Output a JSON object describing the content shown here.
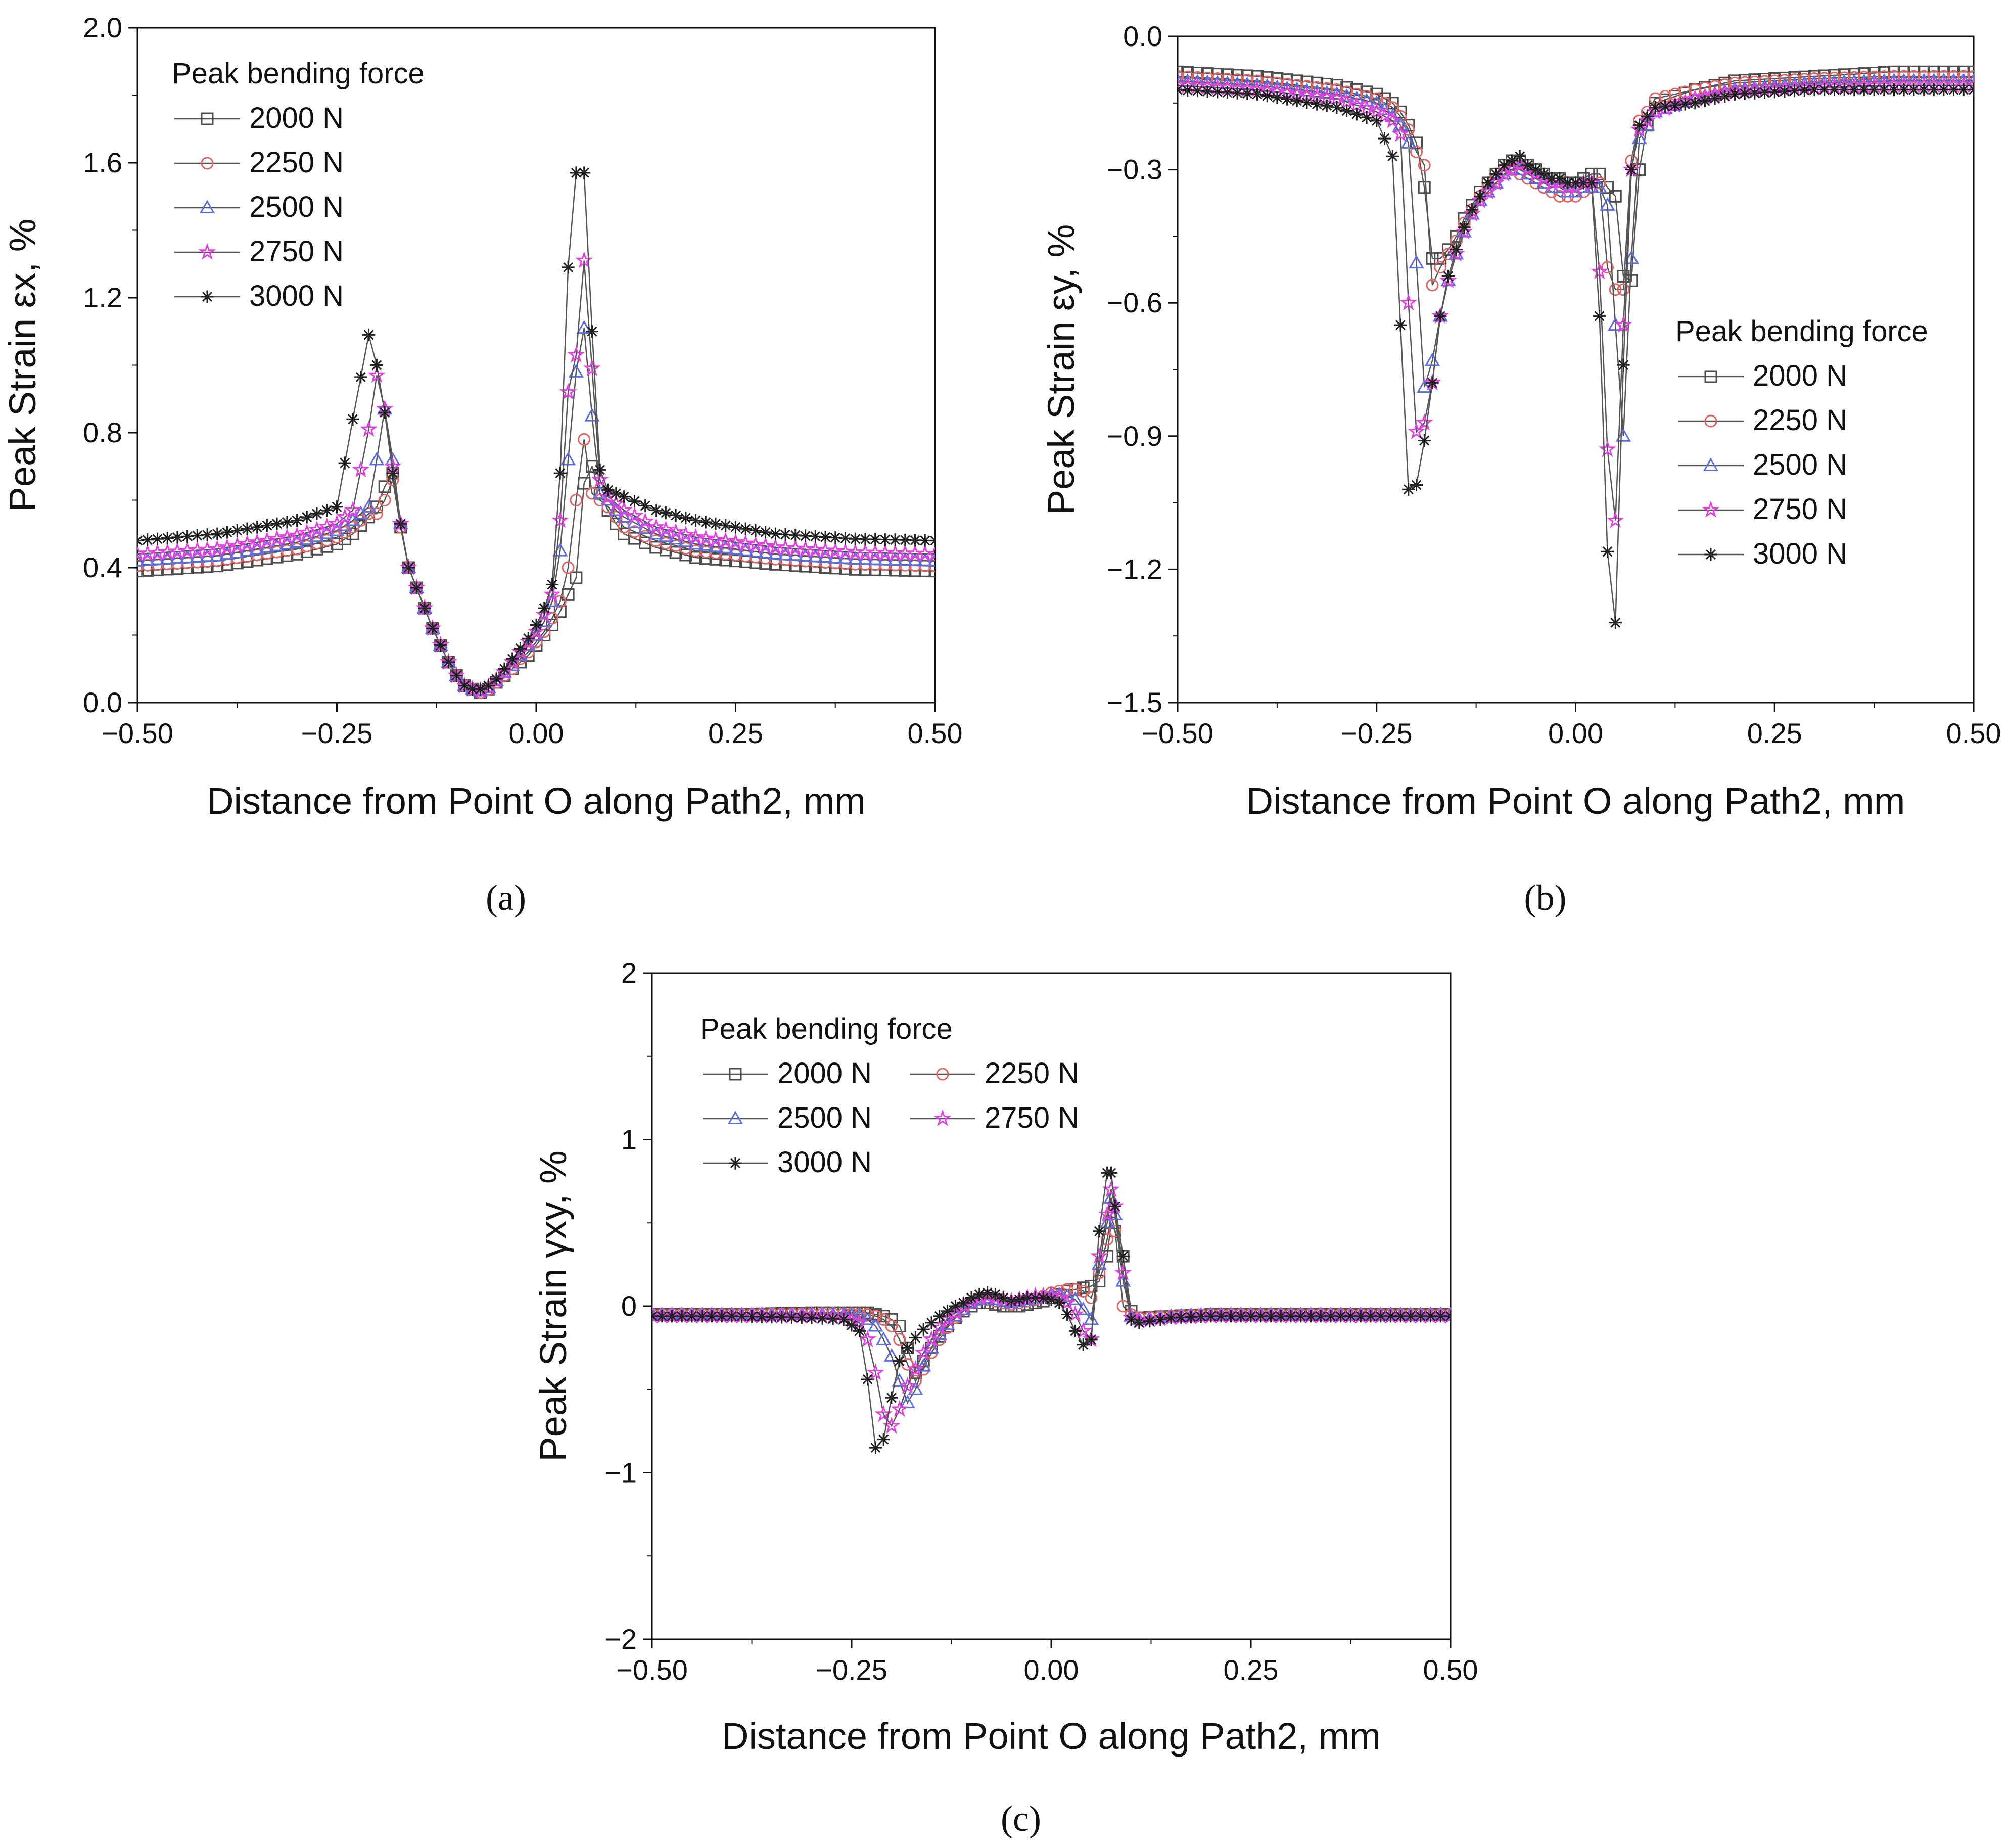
{
  "chart_data": [
    {
      "type": "line",
      "panel_label": "(a)",
      "xlabel": "Distance from Point O along Path2, mm",
      "ylabel": "Peak Strain εx, %",
      "xlim": [
        -0.5,
        0.5
      ],
      "ylim": [
        0.0,
        2.0
      ],
      "x_ticks": [
        "−0.50",
        "−0.25",
        "0.00",
        "0.25",
        "0.50"
      ],
      "y_ticks": [
        "0.0",
        "0.4",
        "0.8",
        "1.2",
        "1.6",
        "2.0"
      ],
      "legend_title": "Peak bending force",
      "legend_layout": "single-column",
      "legend_position": "top-left",
      "x": [
        -0.5,
        -0.4,
        -0.3,
        -0.25,
        -0.23,
        -0.21,
        -0.2,
        -0.19,
        -0.18,
        -0.17,
        -0.16,
        -0.15,
        -0.14,
        -0.13,
        -0.12,
        -0.11,
        -0.1,
        -0.09,
        -0.08,
        -0.07,
        -0.06,
        -0.05,
        -0.04,
        -0.03,
        -0.02,
        -0.01,
        0.0,
        0.01,
        0.02,
        0.03,
        0.04,
        0.05,
        0.06,
        0.07,
        0.08,
        0.09,
        0.1,
        0.11,
        0.15,
        0.2,
        0.3,
        0.4,
        0.5
      ],
      "series": [
        {
          "name": "2000 N",
          "color": "#4d4d4d",
          "marker": "square",
          "values": [
            0.39,
            0.405,
            0.44,
            0.47,
            0.5,
            0.55,
            0.58,
            0.64,
            0.68,
            0.52,
            0.4,
            0.34,
            0.28,
            0.22,
            0.17,
            0.12,
            0.08,
            0.05,
            0.04,
            0.03,
            0.04,
            0.06,
            0.08,
            0.1,
            0.12,
            0.14,
            0.17,
            0.2,
            0.23,
            0.27,
            0.32,
            0.37,
            0.65,
            0.7,
            0.62,
            0.57,
            0.53,
            0.5,
            0.46,
            0.43,
            0.41,
            0.395,
            0.39
          ]
        },
        {
          "name": "2250 N",
          "color": "#e06666",
          "marker": "circle",
          "values": [
            0.405,
            0.42,
            0.455,
            0.49,
            0.52,
            0.56,
            0.56,
            0.6,
            0.66,
            0.52,
            0.4,
            0.34,
            0.28,
            0.22,
            0.17,
            0.12,
            0.08,
            0.05,
            0.04,
            0.03,
            0.04,
            0.06,
            0.08,
            0.1,
            0.13,
            0.15,
            0.18,
            0.21,
            0.25,
            0.3,
            0.4,
            0.6,
            0.78,
            0.62,
            0.6,
            0.58,
            0.55,
            0.52,
            0.48,
            0.45,
            0.425,
            0.41,
            0.405
          ]
        },
        {
          "name": "2500 N",
          "color": "#5b6ee0",
          "marker": "triangle",
          "values": [
            0.42,
            0.435,
            0.475,
            0.51,
            0.54,
            0.58,
            0.72,
            0.87,
            0.72,
            0.53,
            0.4,
            0.34,
            0.28,
            0.22,
            0.17,
            0.12,
            0.08,
            0.05,
            0.04,
            0.035,
            0.045,
            0.065,
            0.09,
            0.11,
            0.14,
            0.17,
            0.2,
            0.24,
            0.3,
            0.45,
            0.72,
            0.98,
            1.11,
            0.85,
            0.62,
            0.6,
            0.57,
            0.55,
            0.5,
            0.47,
            0.44,
            0.425,
            0.42
          ]
        },
        {
          "name": "2750 N",
          "color": "#e040e0",
          "marker": "star",
          "values": [
            0.44,
            0.455,
            0.495,
            0.53,
            0.57,
            0.81,
            0.97,
            0.87,
            0.7,
            0.53,
            0.4,
            0.34,
            0.28,
            0.22,
            0.17,
            0.12,
            0.08,
            0.05,
            0.04,
            0.035,
            0.045,
            0.065,
            0.09,
            0.12,
            0.15,
            0.18,
            0.21,
            0.26,
            0.32,
            0.54,
            0.92,
            1.03,
            1.31,
            0.99,
            0.66,
            0.61,
            0.59,
            0.57,
            0.52,
            0.49,
            0.46,
            0.445,
            0.44
          ]
        },
        {
          "name": "3000 N",
          "color": "#222222",
          "marker": "asterisk",
          "values": [
            0.48,
            0.5,
            0.54,
            0.58,
            0.84,
            1.09,
            1.0,
            0.86,
            0.68,
            0.53,
            0.4,
            0.34,
            0.28,
            0.22,
            0.17,
            0.12,
            0.08,
            0.05,
            0.04,
            0.04,
            0.05,
            0.07,
            0.1,
            0.13,
            0.16,
            0.19,
            0.23,
            0.28,
            0.35,
            0.68,
            1.29,
            1.57,
            1.57,
            1.1,
            0.69,
            0.63,
            0.62,
            0.61,
            0.57,
            0.54,
            0.5,
            0.485,
            0.48
          ]
        }
      ]
    },
    {
      "type": "line",
      "panel_label": "(b)",
      "xlabel": "Distance from Point O along Path2, mm",
      "ylabel": "Peak Strain εy, %",
      "xlim": [
        -0.5,
        0.5
      ],
      "ylim": [
        -1.5,
        0.0
      ],
      "x_ticks": [
        "−0.50",
        "−0.25",
        "0.00",
        "0.25",
        "0.50"
      ],
      "y_ticks": [
        "−1.5",
        "−1.2",
        "−0.9",
        "−0.6",
        "−0.3",
        "0.0"
      ],
      "legend_title": "Peak bending force",
      "legend_layout": "single-column",
      "legend_position": "right",
      "x": [
        -0.5,
        -0.4,
        -0.3,
        -0.25,
        -0.23,
        -0.22,
        -0.21,
        -0.2,
        -0.19,
        -0.18,
        -0.17,
        -0.16,
        -0.15,
        -0.14,
        -0.13,
        -0.12,
        -0.11,
        -0.1,
        -0.09,
        -0.08,
        -0.07,
        -0.06,
        -0.05,
        -0.04,
        -0.03,
        -0.02,
        -0.01,
        0.0,
        0.01,
        0.02,
        0.03,
        0.04,
        0.05,
        0.06,
        0.07,
        0.08,
        0.09,
        0.1,
        0.15,
        0.2,
        0.3,
        0.4,
        0.5
      ],
      "series": [
        {
          "name": "2000 N",
          "color": "#4d4d4d",
          "marker": "square",
          "values": [
            -0.08,
            -0.09,
            -0.11,
            -0.13,
            -0.15,
            -0.17,
            -0.2,
            -0.24,
            -0.34,
            -0.5,
            -0.5,
            -0.48,
            -0.45,
            -0.41,
            -0.38,
            -0.35,
            -0.33,
            -0.31,
            -0.29,
            -0.28,
            -0.28,
            -0.29,
            -0.3,
            -0.31,
            -0.32,
            -0.32,
            -0.33,
            -0.33,
            -0.32,
            -0.31,
            -0.31,
            -0.34,
            -0.36,
            -0.54,
            -0.55,
            -0.3,
            -0.2,
            -0.15,
            -0.12,
            -0.1,
            -0.09,
            -0.08,
            -0.08
          ]
        },
        {
          "name": "2250 N",
          "color": "#e06666",
          "marker": "circle",
          "values": [
            -0.09,
            -0.1,
            -0.12,
            -0.14,
            -0.16,
            -0.18,
            -0.21,
            -0.26,
            -0.29,
            -0.56,
            -0.52,
            -0.49,
            -0.46,
            -0.42,
            -0.39,
            -0.36,
            -0.34,
            -0.32,
            -0.3,
            -0.3,
            -0.31,
            -0.32,
            -0.33,
            -0.34,
            -0.35,
            -0.36,
            -0.36,
            -0.36,
            -0.35,
            -0.34,
            -0.33,
            -0.52,
            -0.57,
            -0.57,
            -0.28,
            -0.19,
            -0.17,
            -0.14,
            -0.12,
            -0.105,
            -0.095,
            -0.09,
            -0.09
          ]
        },
        {
          "name": "2500 N",
          "color": "#5b6ee0",
          "marker": "triangle",
          "values": [
            -0.1,
            -0.11,
            -0.13,
            -0.15,
            -0.18,
            -0.2,
            -0.24,
            -0.51,
            -0.79,
            -0.73,
            -0.63,
            -0.55,
            -0.49,
            -0.44,
            -0.4,
            -0.37,
            -0.35,
            -0.33,
            -0.31,
            -0.3,
            -0.3,
            -0.31,
            -0.32,
            -0.33,
            -0.34,
            -0.34,
            -0.35,
            -0.35,
            -0.34,
            -0.34,
            -0.34,
            -0.38,
            -0.65,
            -0.9,
            -0.5,
            -0.23,
            -0.2,
            -0.17,
            -0.14,
            -0.12,
            -0.105,
            -0.1,
            -0.1
          ]
        },
        {
          "name": "2750 N",
          "color": "#e040e0",
          "marker": "star",
          "values": [
            -0.11,
            -0.12,
            -0.14,
            -0.17,
            -0.19,
            -0.22,
            -0.6,
            -0.89,
            -0.87,
            -0.78,
            -0.63,
            -0.55,
            -0.49,
            -0.44,
            -0.4,
            -0.37,
            -0.35,
            -0.33,
            -0.31,
            -0.3,
            -0.29,
            -0.3,
            -0.31,
            -0.32,
            -0.33,
            -0.33,
            -0.34,
            -0.34,
            -0.33,
            -0.33,
            -0.53,
            -0.93,
            -1.09,
            -0.65,
            -0.3,
            -0.21,
            -0.19,
            -0.17,
            -0.14,
            -0.125,
            -0.115,
            -0.11,
            -0.11
          ]
        },
        {
          "name": "3000 N",
          "color": "#222222",
          "marker": "asterisk",
          "values": [
            -0.12,
            -0.13,
            -0.16,
            -0.19,
            -0.27,
            -0.65,
            -1.02,
            -1.01,
            -0.91,
            -0.78,
            -0.63,
            -0.54,
            -0.48,
            -0.43,
            -0.39,
            -0.36,
            -0.33,
            -0.31,
            -0.29,
            -0.28,
            -0.27,
            -0.29,
            -0.3,
            -0.31,
            -0.32,
            -0.32,
            -0.33,
            -0.33,
            -0.33,
            -0.33,
            -0.63,
            -1.16,
            -1.32,
            -0.74,
            -0.3,
            -0.2,
            -0.18,
            -0.16,
            -0.15,
            -0.13,
            -0.12,
            -0.12,
            -0.12
          ]
        }
      ]
    },
    {
      "type": "line",
      "panel_label": "(c)",
      "xlabel": "Distance from Point O along Path2, mm",
      "ylabel": "Peak Strain γxy, %",
      "xlim": [
        -0.5,
        0.5
      ],
      "ylim": [
        -2,
        2
      ],
      "x_ticks": [
        "−0.50",
        "−0.25",
        "0.00",
        "0.25",
        "0.50"
      ],
      "y_ticks": [
        "−2",
        "−1",
        "0",
        "1",
        "2"
      ],
      "legend_title": "Peak bending force",
      "legend_layout": "two-column",
      "legend_position": "top-left",
      "x": [
        -0.5,
        -0.4,
        -0.3,
        -0.26,
        -0.24,
        -0.23,
        -0.22,
        -0.21,
        -0.2,
        -0.19,
        -0.18,
        -0.17,
        -0.16,
        -0.15,
        -0.14,
        -0.13,
        -0.12,
        -0.11,
        -0.1,
        -0.09,
        -0.08,
        -0.07,
        -0.06,
        -0.05,
        -0.04,
        -0.03,
        -0.02,
        -0.01,
        0.0,
        0.01,
        0.02,
        0.03,
        0.04,
        0.05,
        0.06,
        0.07,
        0.075,
        0.08,
        0.09,
        0.1,
        0.11,
        0.15,
        0.2,
        0.3,
        0.4,
        0.5
      ],
      "series": [
        {
          "name": "2000 N",
          "color": "#4d4d4d",
          "marker": "square",
          "values": [
            -0.05,
            -0.05,
            -0.04,
            -0.04,
            -0.04,
            -0.04,
            -0.05,
            -0.06,
            -0.08,
            -0.12,
            -0.25,
            -0.4,
            -0.33,
            -0.25,
            -0.18,
            -0.12,
            -0.07,
            -0.03,
            0.0,
            0.02,
            0.02,
            0.01,
            0.0,
            0.0,
            0.0,
            0.01,
            0.02,
            0.03,
            0.05,
            0.07,
            0.09,
            0.1,
            0.11,
            0.12,
            0.15,
            0.3,
            0.5,
            0.45,
            0.3,
            -0.03,
            -0.07,
            -0.06,
            -0.05,
            -0.05,
            -0.05,
            -0.05
          ]
        },
        {
          "name": "2250 N",
          "color": "#e06666",
          "marker": "circle",
          "values": [
            -0.05,
            -0.05,
            -0.045,
            -0.045,
            -0.05,
            -0.05,
            -0.06,
            -0.08,
            -0.12,
            -0.2,
            -0.35,
            -0.45,
            -0.38,
            -0.28,
            -0.2,
            -0.13,
            -0.07,
            -0.02,
            0.02,
            0.04,
            0.04,
            0.03,
            0.02,
            0.01,
            0.02,
            0.03,
            0.04,
            0.06,
            0.08,
            0.09,
            0.1,
            0.1,
            0.09,
            0.05,
            0.2,
            0.4,
            0.55,
            0.45,
            0.0,
            -0.05,
            -0.07,
            -0.06,
            -0.05,
            -0.05,
            -0.05,
            -0.05
          ]
        },
        {
          "name": "2500 N",
          "color": "#5b6ee0",
          "marker": "triangle",
          "values": [
            -0.05,
            -0.05,
            -0.05,
            -0.05,
            -0.06,
            -0.08,
            -0.12,
            -0.2,
            -0.3,
            -0.45,
            -0.58,
            -0.5,
            -0.36,
            -0.25,
            -0.17,
            -0.11,
            -0.06,
            -0.02,
            0.02,
            0.04,
            0.05,
            0.04,
            0.03,
            0.02,
            0.03,
            0.04,
            0.05,
            0.06,
            0.07,
            0.07,
            0.06,
            0.04,
            -0.02,
            -0.08,
            0.25,
            0.5,
            0.65,
            0.55,
            0.15,
            -0.06,
            -0.08,
            -0.06,
            -0.05,
            -0.05,
            -0.05,
            -0.05
          ]
        },
        {
          "name": "2750 N",
          "color": "#e040e0",
          "marker": "star",
          "values": [
            -0.06,
            -0.06,
            -0.06,
            -0.07,
            -0.1,
            -0.2,
            -0.4,
            -0.65,
            -0.72,
            -0.62,
            -0.48,
            -0.38,
            -0.28,
            -0.2,
            -0.13,
            -0.08,
            -0.04,
            0.0,
            0.03,
            0.05,
            0.06,
            0.05,
            0.04,
            0.03,
            0.04,
            0.05,
            0.06,
            0.06,
            0.06,
            0.05,
            0.02,
            -0.05,
            -0.15,
            -0.2,
            0.3,
            0.55,
            0.7,
            0.6,
            0.2,
            -0.07,
            -0.09,
            -0.07,
            -0.06,
            -0.06,
            -0.06,
            -0.06
          ]
        },
        {
          "name": "3000 N",
          "color": "#222222",
          "marker": "asterisk",
          "values": [
            -0.06,
            -0.06,
            -0.07,
            -0.08,
            -0.15,
            -0.44,
            -0.85,
            -0.8,
            -0.55,
            -0.33,
            -0.25,
            -0.19,
            -0.14,
            -0.1,
            -0.06,
            -0.03,
            0.0,
            0.02,
            0.05,
            0.07,
            0.08,
            0.07,
            0.05,
            0.03,
            0.04,
            0.05,
            0.05,
            0.05,
            0.04,
            0.02,
            -0.05,
            -0.15,
            -0.23,
            -0.2,
            0.45,
            0.8,
            0.8,
            0.6,
            0.3,
            -0.08,
            -0.1,
            -0.07,
            -0.06,
            -0.06,
            -0.06,
            -0.06
          ]
        }
      ]
    }
  ]
}
